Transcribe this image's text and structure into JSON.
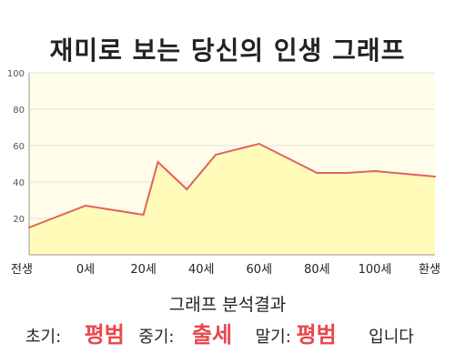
{
  "title": "재미로 보는 당신의 인생 그래프",
  "analysis": {
    "heading": "그래프 분석결과",
    "early_label": "초기:",
    "early_value": "평범",
    "mid_label": "중기:",
    "mid_value": "출세",
    "late_label": "말기:",
    "late_value": "평범",
    "suffix": "입니다"
  },
  "colors": {
    "plot_background": "#fffde9",
    "line": "#e06060",
    "area_fill": "#fffbb8",
    "grid": "#e2e2e2",
    "accent_text": "#e8474d"
  },
  "chart_data": {
    "type": "area",
    "title": "재미로 보는 당신의 인생 그래프",
    "x_tick_labels": [
      "전생",
      "0세",
      "20세",
      "40세",
      "60세",
      "80세",
      "100세",
      "환생"
    ],
    "y_ticks": [
      20,
      40,
      60,
      80,
      100
    ],
    "ylim": [
      0,
      100
    ],
    "grid": true,
    "series": [
      {
        "points": [
          {
            "x": "전생",
            "y": 15
          },
          {
            "x": "0세",
            "y": 27
          },
          {
            "x": "20세",
            "y": 22
          },
          {
            "x": "25세",
            "y": 51
          },
          {
            "x": "35세",
            "y": 36
          },
          {
            "x": "45세",
            "y": 55
          },
          {
            "x": "60세",
            "y": 61
          },
          {
            "x": "70세",
            "y": 53
          },
          {
            "x": "80세",
            "y": 45
          },
          {
            "x": "90세",
            "y": 45
          },
          {
            "x": "100세",
            "y": 46
          },
          {
            "x": "환생",
            "y": 43
          }
        ]
      }
    ]
  }
}
